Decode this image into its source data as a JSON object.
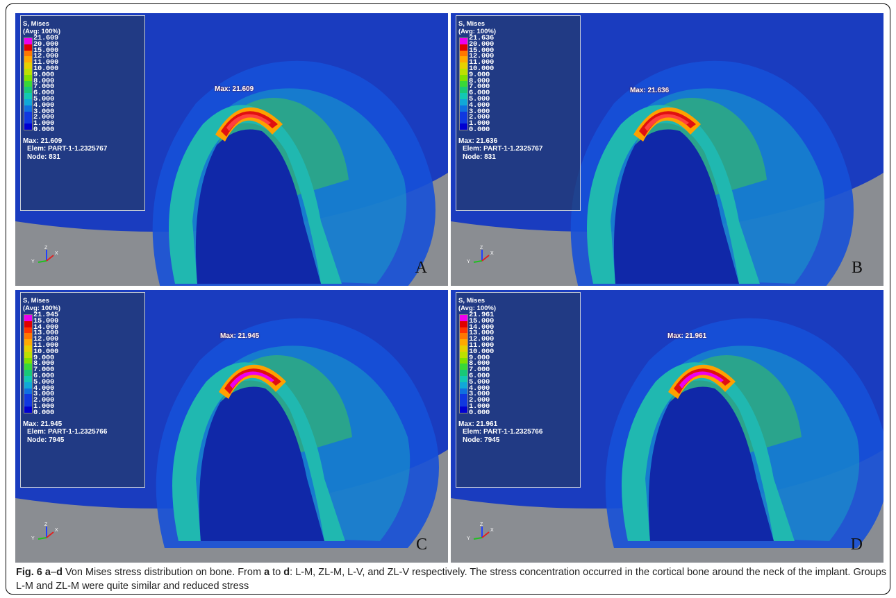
{
  "panels": [
    {
      "letter": "A",
      "max_label": "Max: 21.609",
      "legend": {
        "title": "S, Mises",
        "subtitle": "(Avg: 100%)",
        "values": [
          "21.609",
          "20.000",
          "15.000",
          "12.000",
          "11.000",
          "10.000",
          "9.000",
          "8.000",
          "7.000",
          "6.000",
          "5.000",
          "4.000",
          "3.000",
          "2.000",
          "1.000",
          "0.000"
        ],
        "max_line": "Max: 21.609",
        "elem_line": "Elem: PART-1-1.2325767",
        "node_line": "Node: 831"
      },
      "axis_labels": {
        "y": "Y",
        "z": "Z",
        "x": "X"
      }
    },
    {
      "letter": "B",
      "max_label": "Max: 21.636",
      "legend": {
        "title": "S, Mises",
        "subtitle": "(Avg: 100%)",
        "values": [
          "21.636",
          "20.000",
          "15.000",
          "12.000",
          "11.000",
          "10.000",
          "9.000",
          "8.000",
          "7.000",
          "6.000",
          "5.000",
          "4.000",
          "3.000",
          "2.000",
          "1.000",
          "0.000"
        ],
        "max_line": "Max: 21.636",
        "elem_line": "Elem: PART-1-1.2325767",
        "node_line": "Node: 831"
      },
      "axis_labels": {
        "y": "Y",
        "z": "Z",
        "x": "X"
      }
    },
    {
      "letter": "C",
      "max_label": "Max: 21.945",
      "legend": {
        "title": "S, Mises",
        "subtitle": "(Avg: 100%)",
        "values": [
          "21.945",
          "15.000",
          "14.000",
          "13.000",
          "12.000",
          "11.000",
          "10.000",
          "9.000",
          "8.000",
          "7.000",
          "6.000",
          "5.000",
          "4.000",
          "3.000",
          "2.000",
          "1.000",
          "0.000"
        ],
        "max_line": "Max: 21.945",
        "elem_line": "Elem: PART-1-1.2325766",
        "node_line": "Node: 7945"
      },
      "axis_labels": {
        "y": "Y",
        "z": "Z",
        "x": "X"
      }
    },
    {
      "letter": "D",
      "max_label": "Max: 21.961",
      "legend": {
        "title": "S, Mises",
        "subtitle": "(Avg: 100%)",
        "values": [
          "21.961",
          "15.000",
          "14.000",
          "13.000",
          "12.000",
          "11.000",
          "10.000",
          "9.000",
          "8.000",
          "7.000",
          "6.000",
          "5.000",
          "4.000",
          "3.000",
          "2.000",
          "1.000",
          "0.000"
        ],
        "max_line": "Max: 21.961",
        "elem_line": "Elem: PART-1-1.2325766",
        "node_line": "Node: 7945"
      },
      "axis_labels": {
        "y": "Y",
        "z": "Z",
        "x": "X"
      }
    }
  ],
  "colors": {
    "scale_bands_top_to_bottom": [
      "#ee00ee",
      "#e00000",
      "#ff3300",
      "#ff7700",
      "#ffaa00",
      "#e6d000",
      "#bde000",
      "#80e000",
      "#38d838",
      "#18c878",
      "#12c8b4",
      "#10a8d8",
      "#1070e0",
      "#1038e0",
      "#0000d0"
    ],
    "background_blue": "#1a3cbf",
    "floor_grey": "#8a8d92"
  },
  "caption": {
    "fig_label": "Fig. 6",
    "range_a": "a",
    "range_dash": "–",
    "range_d": "d",
    "text_1": " Von Mises stress distribution on bone. From ",
    "from_a": "a",
    "text_2": " to ",
    "to_d": "d",
    "text_3": ": L-M, ZL-M, L-V, and ZL-V respectively. The stress concentration occurred in the cortical bone around the neck of the implant. Groups L-M and ZL-M were quite similar and reduced stress"
  }
}
